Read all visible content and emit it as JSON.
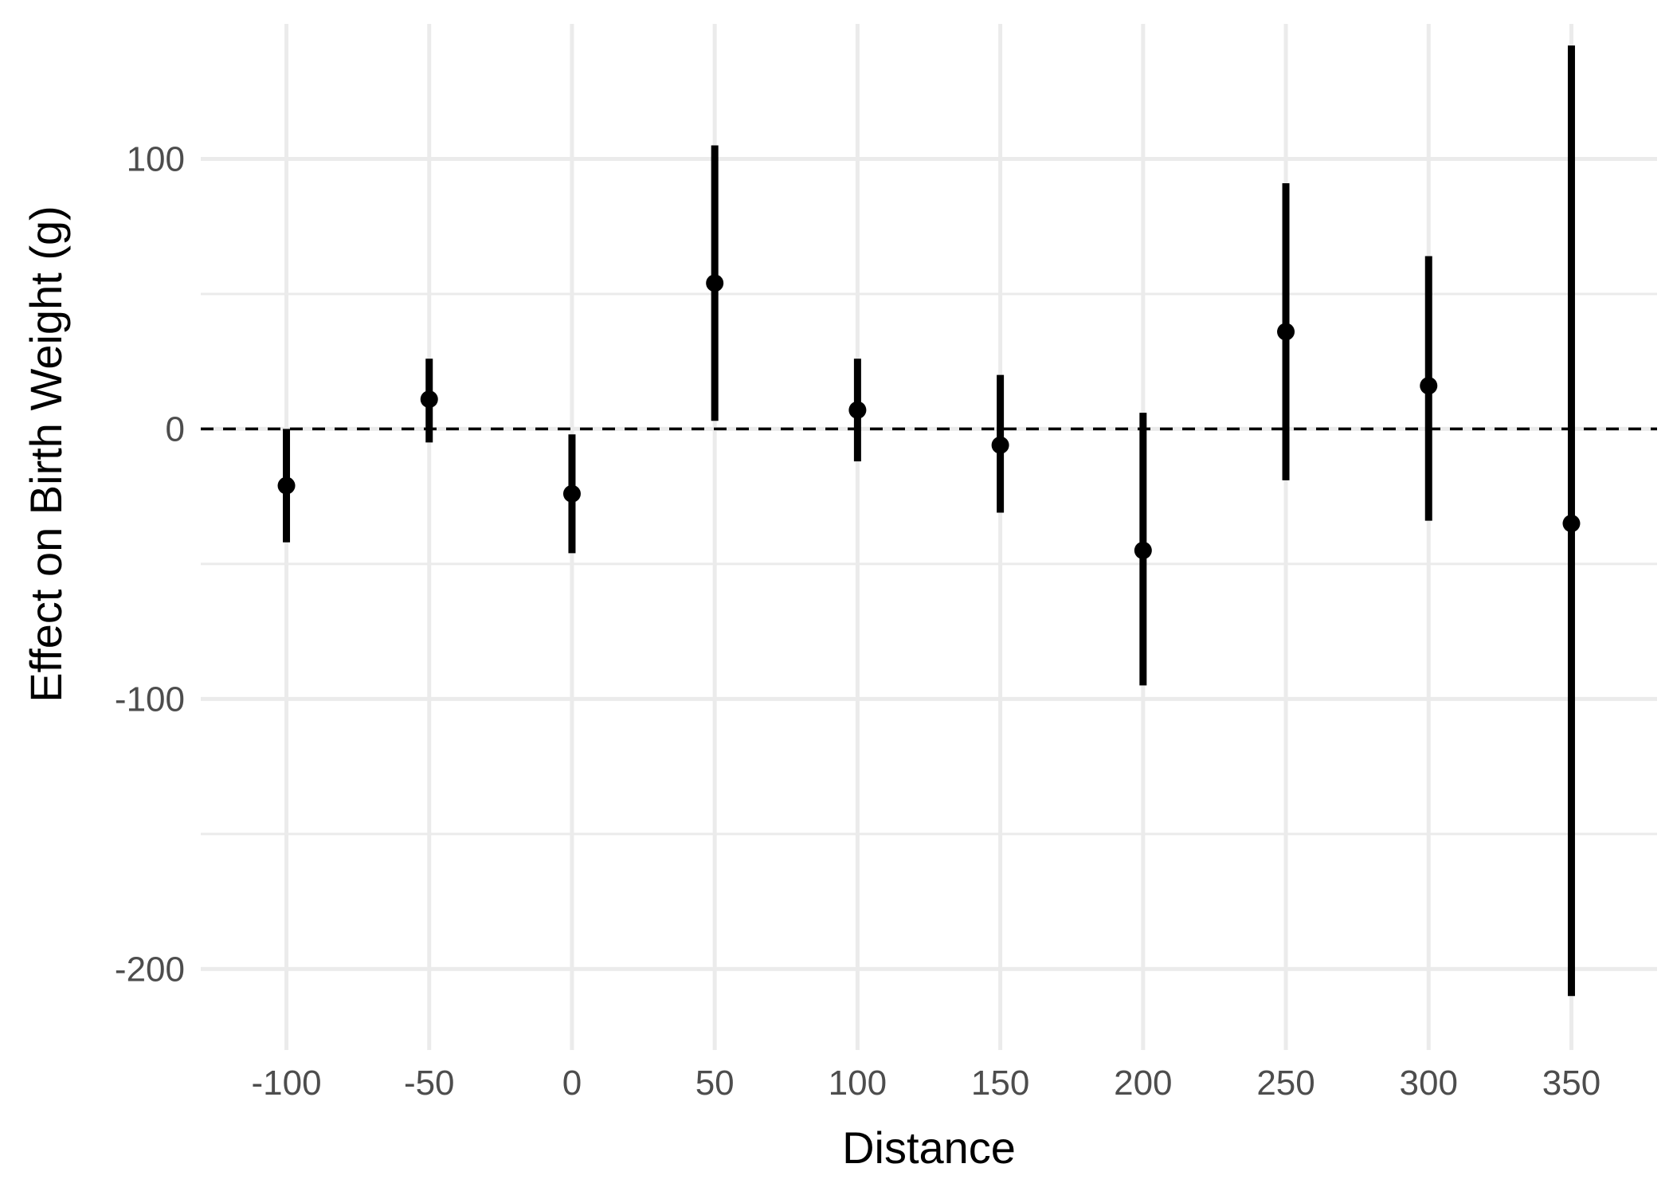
{
  "chart_data": {
    "type": "scatter",
    "subtype": "point-range",
    "title": "",
    "xlabel": "Distance",
    "ylabel": "Effect on Birth Weight (g)",
    "xlim": [
      -130,
      380
    ],
    "ylim": [
      -230,
      150
    ],
    "x_ticks": [
      -100,
      -50,
      0,
      50,
      100,
      150,
      200,
      250,
      300,
      350
    ],
    "y_ticks": [
      -200,
      -100,
      0,
      100
    ],
    "y_minor_ticks": [
      -150,
      -50,
      50
    ],
    "grid": true,
    "reference_line": {
      "y": 0,
      "style": "dashed"
    },
    "legend": "none",
    "series": [
      {
        "x": [
          -100,
          -50,
          0,
          50,
          100,
          150,
          200,
          250,
          300,
          350
        ],
        "estimate": [
          -21,
          11,
          -24,
          54,
          7,
          -6,
          -45,
          36,
          16,
          -35
        ],
        "lower": [
          -42,
          -5,
          -46,
          3,
          -12,
          -31,
          -95,
          -19,
          -34,
          -210
        ],
        "upper": [
          0,
          26,
          -2,
          105,
          26,
          20,
          6,
          91,
          64,
          142
        ]
      }
    ],
    "colors": {
      "marks": "#000000",
      "grid": "#ebebeb",
      "tick_text": "#4d4d4d"
    }
  }
}
